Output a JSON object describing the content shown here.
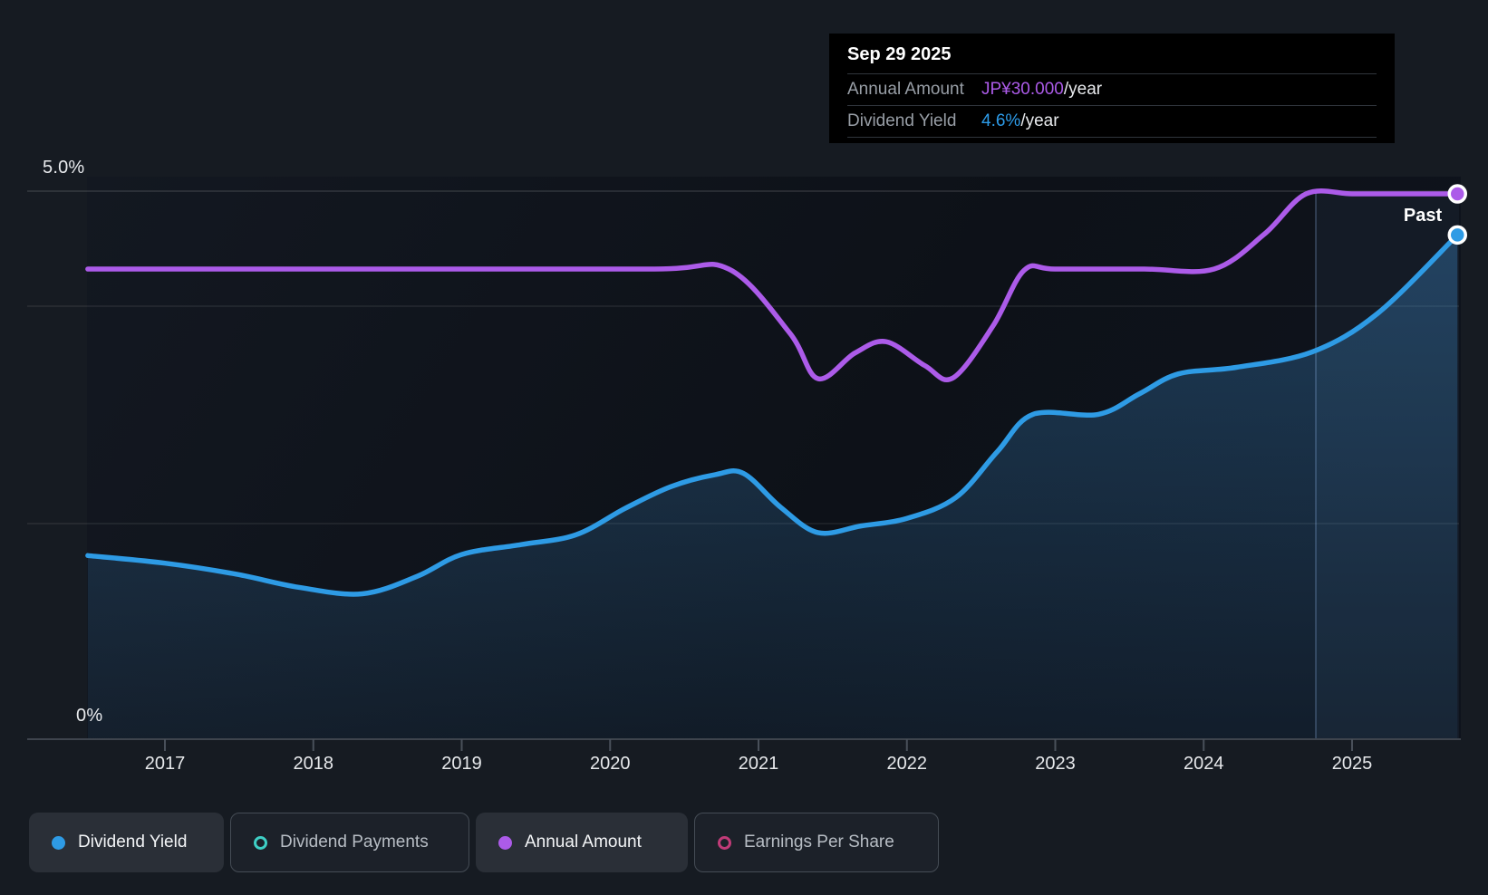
{
  "tooltip": {
    "date": "Sep 29 2025",
    "rows": [
      {
        "label": "Annual Amount",
        "value": "JP¥30.000",
        "suffix": "/year",
        "color": "#AC5BE9"
      },
      {
        "label": "Dividend Yield",
        "value": "4.6%",
        "suffix": "/year",
        "color": "#2D9BE8"
      }
    ]
  },
  "axis": {
    "y_top_label": "5.0%",
    "y_bottom_label": "0%"
  },
  "annotations": {
    "past_label": "Past"
  },
  "legend": [
    {
      "label": "Dividend Yield",
      "marker": "filled",
      "color": "#2E9BE5",
      "active": true
    },
    {
      "label": "Dividend Payments",
      "marker": "ring",
      "color": "#3ECFC5",
      "active": false
    },
    {
      "label": "Annual Amount",
      "marker": "filled",
      "color": "#AC5BE9",
      "active": true
    },
    {
      "label": "Earnings Per Share",
      "marker": "ring",
      "color": "#C13B78",
      "active": false
    }
  ],
  "colors": {
    "background": "#161B22",
    "tooltip_background": "#000000",
    "dividend_yield_line": "#2E9BE5",
    "annual_amount_line": "#AC5BE9",
    "gridline": "#2A303A",
    "axis_text": "#E9EBEE"
  },
  "chart_data": {
    "type": "line",
    "title": "Dividend history (yield and annual amount)",
    "x_axis": {
      "tick_labels": [
        "2017",
        "2018",
        "2019",
        "2020",
        "2021",
        "2022",
        "2023",
        "2024",
        "2025"
      ],
      "range_years": [
        2016.48,
        2025.95
      ]
    },
    "y_axis": {
      "top_label": "5.0%",
      "bottom_label": "0%",
      "unit": "%",
      "range": [
        0,
        5.2
      ],
      "gridlines_pct": [
        5.0,
        3.95,
        2.0
      ]
    },
    "legend_position": "bottom",
    "markers": {
      "divider_x_year": 2024.76,
      "highlight_band_years": [
        2024.76,
        2025.72
      ],
      "past_label_position_year": 2025.48
    },
    "series": [
      {
        "name": "Dividend Yield",
        "unit": "percent",
        "color": "#2E9BE5",
        "style": "area",
        "points": [
          [
            2016.48,
            1.67
          ],
          [
            2017.0,
            1.6
          ],
          [
            2017.48,
            1.5
          ],
          [
            2017.9,
            1.38
          ],
          [
            2018.33,
            1.32
          ],
          [
            2018.7,
            1.48
          ],
          [
            2019.0,
            1.68
          ],
          [
            2019.4,
            1.77
          ],
          [
            2019.77,
            1.86
          ],
          [
            2020.1,
            2.1
          ],
          [
            2020.41,
            2.3
          ],
          [
            2020.71,
            2.41
          ],
          [
            2020.9,
            2.42
          ],
          [
            2021.15,
            2.11
          ],
          [
            2021.4,
            1.88
          ],
          [
            2021.69,
            1.94
          ],
          [
            2022.0,
            2.01
          ],
          [
            2022.33,
            2.2
          ],
          [
            2022.61,
            2.62
          ],
          [
            2022.85,
            2.96
          ],
          [
            2023.29,
            2.96
          ],
          [
            2023.57,
            3.15
          ],
          [
            2023.83,
            3.33
          ],
          [
            2024.22,
            3.39
          ],
          [
            2024.73,
            3.53
          ],
          [
            2025.17,
            3.88
          ],
          [
            2025.71,
            4.6
          ]
        ]
      },
      {
        "name": "Annual Amount",
        "unit": "JPY_per_year",
        "color": "#AC5BE9",
        "style": "line",
        "points": [
          [
            2016.48,
            24
          ],
          [
            2018.6,
            24
          ],
          [
            2020.3,
            24
          ],
          [
            2020.8,
            24
          ],
          [
            2021.21,
            18.9
          ],
          [
            2021.4,
            15.25
          ],
          [
            2021.65,
            17.3
          ],
          [
            2021.86,
            18.2
          ],
          [
            2022.12,
            16.3
          ],
          [
            2022.31,
            15.3
          ],
          [
            2022.58,
            19.45
          ],
          [
            2022.79,
            23.9
          ],
          [
            2023.0,
            24
          ],
          [
            2023.6,
            24
          ],
          [
            2024.07,
            24
          ],
          [
            2024.41,
            26.8
          ],
          [
            2024.69,
            30
          ],
          [
            2025.0,
            30
          ],
          [
            2025.3,
            30
          ],
          [
            2025.71,
            30
          ]
        ]
      }
    ]
  }
}
